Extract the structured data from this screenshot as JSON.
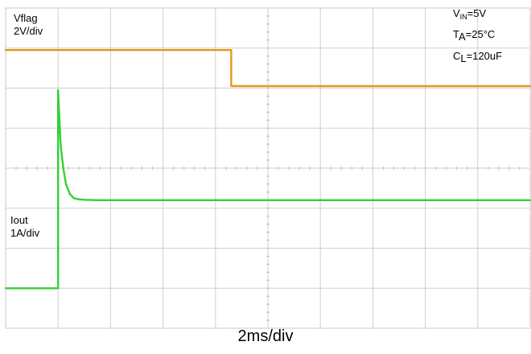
{
  "chart_data": {
    "type": "line",
    "title": "",
    "xlabel": "2ms/div",
    "x_unit": "ms",
    "xlim": [
      0,
      20
    ],
    "ylim": [
      -4,
      4
    ],
    "grid": true,
    "series": [
      {
        "name": "Vflag",
        "scale_label": "2V/div",
        "color": "#e39a1c",
        "x": [
          0,
          8.6,
          8.6,
          20
        ],
        "y": [
          2.95,
          2.95,
          2.05,
          2.05
        ]
      },
      {
        "name": "Iout",
        "scale_label": "1A/div",
        "color": "#35d035",
        "x": [
          0,
          2.0,
          2.0,
          2.05,
          2.1,
          2.2,
          2.3,
          2.45,
          2.6,
          2.8,
          3.0,
          3.5,
          5.0,
          10.0,
          20.0
        ],
        "y": [
          -3.0,
          -3.0,
          1.95,
          1.25,
          0.55,
          0.0,
          -0.4,
          -0.65,
          -0.75,
          -0.78,
          -0.79,
          -0.8,
          -0.8,
          -0.8,
          -0.8
        ]
      }
    ],
    "conditions": {
      "vin": {
        "main": "V",
        "sub": "IN",
        "rest": "=5V"
      },
      "ta": {
        "main": "T",
        "sub": "A",
        "rest": "=25°C"
      },
      "cl": {
        "main": "C",
        "sub": "L",
        "rest": "=120uF"
      }
    }
  }
}
